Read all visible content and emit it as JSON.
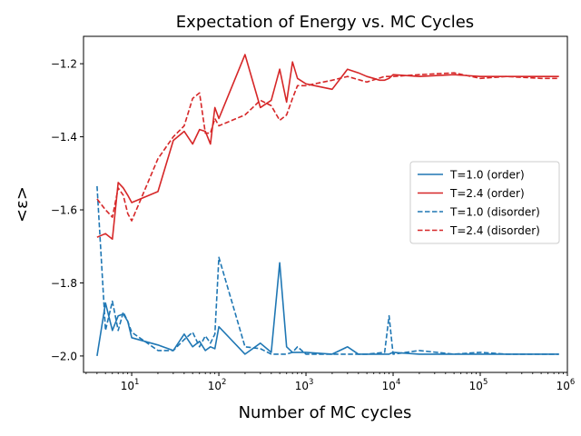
{
  "chart_data": {
    "type": "line",
    "title": "Expectation of Energy vs. MC Cycles",
    "xlabel": "Number of MC cycles",
    "ylabel": "<ε>",
    "xscale": "log",
    "xlim": [
      2.8,
      1000000
    ],
    "ylim": [
      -2.045,
      -1.125
    ],
    "yticks": [
      -2.0,
      -1.8,
      -1.6,
      -1.4,
      -1.2
    ],
    "ytick_labels": [
      "−2.0",
      "−1.8",
      "−1.6",
      "−1.4",
      "−1.2"
    ],
    "xticks": [
      {
        "value": 10,
        "base": "10",
        "exp": "1"
      },
      {
        "value": 100,
        "base": "10",
        "exp": "2"
      },
      {
        "value": 1000,
        "base": "10",
        "exp": "3"
      },
      {
        "value": 10000,
        "base": "10",
        "exp": "4"
      },
      {
        "value": 100000,
        "base": "10",
        "exp": "5"
      },
      {
        "value": 1000000,
        "base": "10",
        "exp": "6"
      }
    ],
    "grid": false,
    "legend_position": "center-right",
    "series": [
      {
        "name": "T=1.0 (order)",
        "color": "#1f77b4",
        "dash": "solid",
        "x": [
          4,
          5,
          6,
          7,
          8,
          9,
          10,
          20,
          30,
          40,
          50,
          60,
          70,
          80,
          90,
          100,
          200,
          300,
          400,
          500,
          600,
          700,
          800,
          1000,
          2000,
          3000,
          4000,
          5000,
          6000,
          7000,
          8000,
          9000,
          10000,
          20000,
          50000,
          100000,
          200000,
          500000,
          800000
        ],
        "y": [
          -2.0,
          -1.855,
          -1.93,
          -1.89,
          -1.885,
          -1.905,
          -1.95,
          -1.97,
          -1.985,
          -1.94,
          -1.975,
          -1.96,
          -1.985,
          -1.975,
          -1.98,
          -1.92,
          -1.995,
          -1.965,
          -1.99,
          -1.745,
          -1.975,
          -1.99,
          -1.99,
          -1.99,
          -1.995,
          -1.975,
          -1.995,
          -1.995,
          -1.995,
          -1.995,
          -1.995,
          -1.995,
          -1.99,
          -1.995,
          -1.995,
          -1.995,
          -1.995,
          -1.995,
          -1.995
        ]
      },
      {
        "name": "T=2.4 (order)",
        "color": "#d62728",
        "dash": "solid",
        "x": [
          4,
          5,
          6,
          7,
          8,
          9,
          10,
          20,
          30,
          40,
          50,
          60,
          70,
          80,
          90,
          100,
          200,
          300,
          400,
          500,
          600,
          700,
          800,
          1000,
          2000,
          3000,
          4000,
          5000,
          6000,
          7000,
          8000,
          9000,
          10000,
          20000,
          50000,
          100000,
          200000,
          500000,
          800000
        ],
        "y": [
          -1.675,
          -1.665,
          -1.68,
          -1.525,
          -1.54,
          -1.56,
          -1.58,
          -1.55,
          -1.41,
          -1.385,
          -1.42,
          -1.38,
          -1.385,
          -1.42,
          -1.32,
          -1.35,
          -1.175,
          -1.32,
          -1.3,
          -1.215,
          -1.305,
          -1.195,
          -1.24,
          -1.255,
          -1.27,
          -1.215,
          -1.225,
          -1.235,
          -1.24,
          -1.245,
          -1.245,
          -1.24,
          -1.23,
          -1.235,
          -1.23,
          -1.235,
          -1.235,
          -1.235,
          -1.235
        ]
      },
      {
        "name": "T=1.0 (disorder)",
        "color": "#1f77b4",
        "dash": "dashed",
        "x": [
          4,
          5,
          6,
          7,
          8,
          9,
          10,
          20,
          30,
          40,
          50,
          60,
          70,
          80,
          90,
          100,
          200,
          300,
          400,
          500,
          600,
          700,
          800,
          1000,
          2000,
          3000,
          5000,
          8000,
          9000,
          10000,
          20000,
          50000,
          100000,
          200000,
          500000,
          800000
        ],
        "y": [
          -1.535,
          -1.93,
          -1.85,
          -1.93,
          -1.88,
          -1.905,
          -1.935,
          -1.985,
          -1.985,
          -1.955,
          -1.935,
          -1.975,
          -1.945,
          -1.965,
          -1.94,
          -1.73,
          -1.975,
          -1.98,
          -1.995,
          -1.995,
          -1.995,
          -1.99,
          -1.975,
          -1.995,
          -1.995,
          -1.995,
          -1.995,
          -1.99,
          -1.89,
          -1.995,
          -1.985,
          -1.995,
          -1.99,
          -1.995,
          -1.995,
          -1.995
        ]
      },
      {
        "name": "T=2.4 (disorder)",
        "color": "#d62728",
        "dash": "dashed",
        "x": [
          4,
          5,
          6,
          7,
          8,
          9,
          10,
          20,
          30,
          40,
          50,
          60,
          70,
          80,
          90,
          100,
          200,
          300,
          400,
          500,
          600,
          700,
          800,
          1000,
          2000,
          3000,
          5000,
          8000,
          10000,
          20000,
          50000,
          100000,
          200000,
          500000,
          800000
        ],
        "y": [
          -1.57,
          -1.6,
          -1.62,
          -1.54,
          -1.56,
          -1.61,
          -1.63,
          -1.46,
          -1.4,
          -1.37,
          -1.295,
          -1.28,
          -1.39,
          -1.39,
          -1.35,
          -1.37,
          -1.34,
          -1.3,
          -1.315,
          -1.355,
          -1.34,
          -1.295,
          -1.26,
          -1.26,
          -1.245,
          -1.235,
          -1.25,
          -1.235,
          -1.235,
          -1.23,
          -1.225,
          -1.24,
          -1.235,
          -1.24,
          -1.24
        ]
      }
    ]
  }
}
